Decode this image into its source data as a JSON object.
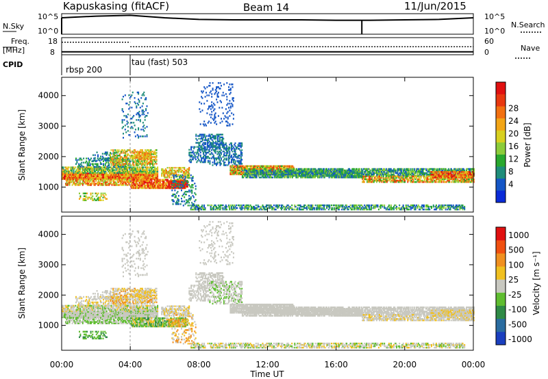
{
  "header": {
    "station": "Kapuskasing (fitACF)",
    "beam": "Beam 14",
    "date": "11/Jun/2015"
  },
  "chart_data": [
    {
      "type": "line",
      "panel": "noise",
      "left_label": "N.Sky",
      "right_label": "N.Search",
      "left_ticks": [
        "10^5",
        "10^0"
      ],
      "right_ticks": [
        "10^5",
        "10^0"
      ],
      "x": [
        0,
        2,
        4,
        6,
        8,
        10,
        12,
        14,
        16,
        17.5,
        18,
        20,
        22,
        24
      ],
      "sky_log": [
        4.0,
        4.4,
        4.6,
        4.0,
        3.6,
        3.5,
        3.5,
        3.5,
        3.4,
        3.4,
        3.4,
        3.5,
        3.6,
        4.0
      ],
      "spikes_h": [
        0,
        17.5
      ]
    },
    {
      "type": "line",
      "panel": "frequency",
      "left_label": "Freq.",
      "left_unit": "[MHz]",
      "right_label": "Nave",
      "left_ticks": [
        "18",
        "8"
      ],
      "right_ticks": [
        "60",
        "0"
      ],
      "freq_mhz": 10.5,
      "nave_segments": [
        {
          "x0": 0,
          "x1": 4,
          "value": 44
        },
        {
          "x0": 4,
          "x1": 24,
          "value": 28
        }
      ]
    },
    {
      "type": "table",
      "panel": "cpid",
      "label": "CPID",
      "programs": [
        {
          "name": "rbsp 200",
          "start": 0,
          "end": 4
        },
        {
          "name": "tau (fast) 503",
          "start": 4,
          "end": 24
        }
      ]
    },
    {
      "type": "heatmap",
      "panel": "power",
      "ylabel": "Slant Range [km]",
      "ylim": [
        180,
        4600
      ],
      "yticks": [
        1000,
        2000,
        3000,
        4000
      ],
      "colorbar": {
        "label": "Power [dB]",
        "ticks": [
          4,
          8,
          12,
          16,
          20,
          24,
          28
        ],
        "colors": [
          "#0a2bd8",
          "#1556c6",
          "#1f8d7a",
          "#29a82e",
          "#8ccc3a",
          "#d8d020",
          "#f2a516",
          "#f27010",
          "#e8380f",
          "#e01010"
        ]
      }
    },
    {
      "type": "heatmap",
      "panel": "velocity",
      "ylabel": "Slant Range [km]",
      "ylim": [
        180,
        4600
      ],
      "yticks": [
        1000,
        2000,
        3000,
        4000
      ],
      "colorbar": {
        "label": "Velocity [m s⁻¹]",
        "ticks": [
          1000,
          500,
          100,
          25,
          -25,
          -100,
          -500,
          -1000
        ],
        "colors": [
          "#1a3fbf",
          "#2a6ca0",
          "#2f8a46",
          "#5fbd30",
          "#c8c8c0",
          "#f0c020",
          "#f09020",
          "#f05010",
          "#e01010"
        ]
      }
    }
  ],
  "time_axis": {
    "xlim": [
      0,
      24
    ],
    "label": "Time UT",
    "ticks": [
      "00:00",
      "04:00",
      "08:00",
      "12:00",
      "16:00",
      "20:00",
      "00:00"
    ]
  }
}
